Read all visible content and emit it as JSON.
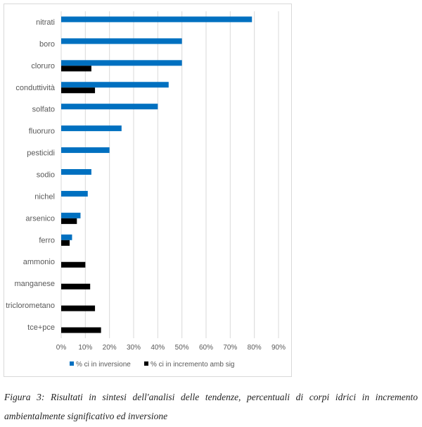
{
  "chart_data": {
    "type": "bar",
    "orientation": "horizontal",
    "categories": [
      "nitrati",
      "boro",
      "cloruro",
      "conduttività",
      "solfato",
      "fluoruro",
      "pesticidi",
      "sodio",
      "nichel",
      "arsenico",
      "ferro",
      "ammonio",
      "manganese",
      "triclorometano",
      "tce+pce"
    ],
    "series": [
      {
        "name": "% ci in inversione",
        "color": "#0070c0",
        "values": [
          79,
          50,
          50,
          44.5,
          40,
          25,
          20,
          12.5,
          11,
          8,
          4.5,
          0,
          0,
          0,
          0
        ]
      },
      {
        "name": "% ci in incremento amb sig",
        "color": "#000000",
        "values": [
          0,
          0,
          12.5,
          14,
          0,
          0,
          0,
          0,
          0,
          6.5,
          3.5,
          10,
          12,
          14,
          16.5
        ]
      }
    ],
    "xlim": [
      0,
      90
    ],
    "xticks": [
      "0%",
      "10%",
      "20%",
      "30%",
      "40%",
      "50%",
      "60%",
      "70%",
      "80%",
      "90%"
    ],
    "grid": true,
    "legend": "bottom",
    "title": "",
    "xlabel": "",
    "ylabel": ""
  },
  "caption": {
    "text": "Figura 3: Risultati in sintesi dell'analisi delle tendenze, percentuali di corpi idrici in incremento ambientalmente significativo ed inversione"
  }
}
